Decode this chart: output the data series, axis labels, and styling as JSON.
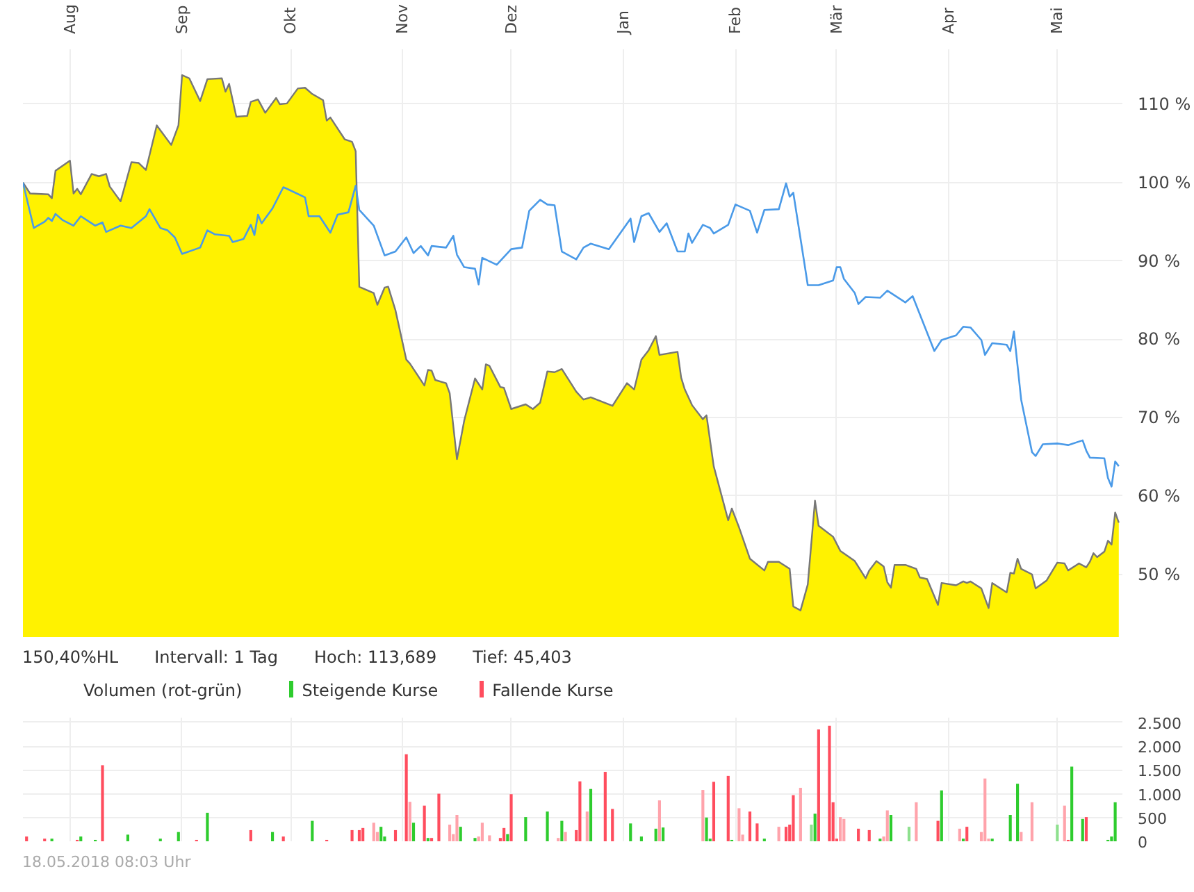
{
  "chart_data": [
    {
      "type": "area",
      "xlim": [
        "2017-07-19",
        "2018-05-19"
      ],
      "ylim": [
        42,
        117
      ],
      "xticks": [
        {
          "value": "2017-08-01",
          "label": "Aug"
        },
        {
          "value": "2017-09-01",
          "label": "Sep"
        },
        {
          "value": "2017-10-01",
          "label": "Okt"
        },
        {
          "value": "2017-11-01",
          "label": "Nov"
        },
        {
          "value": "2017-12-01",
          "label": "Dez"
        },
        {
          "value": "2018-01-01",
          "label": "Jan"
        },
        {
          "value": "2018-02-01",
          "label": "Feb"
        },
        {
          "value": "2018-03-01",
          "label": "Mär"
        },
        {
          "value": "2018-04-01",
          "label": "Apr"
        },
        {
          "value": "2018-05-01",
          "label": "Mai"
        }
      ],
      "yticks": [
        {
          "value": 50,
          "label": "50 %"
        },
        {
          "value": 60,
          "label": "60 %"
        },
        {
          "value": 70,
          "label": "70 %"
        },
        {
          "value": 80,
          "label": "80 %"
        },
        {
          "value": 90,
          "label": "90 %"
        },
        {
          "value": 100,
          "label": "100 %"
        },
        {
          "value": 110,
          "label": "110 %"
        }
      ],
      "grid": true,
      "annotations": [
        "150,40%HL",
        "Intervall: 1 Tag",
        "Hoch: 113,689",
        "Tief: 45,403"
      ],
      "series": [
        {
          "type": "area",
          "color": "#fff200",
          "x": [
            "2017-07-19",
            "2017-07-21",
            "2017-07-26",
            "2017-07-27",
            "2017-07-28",
            "2017-08-01",
            "2017-08-02",
            "2017-08-03",
            "2017-08-04",
            "2017-08-07",
            "2017-08-09",
            "2017-08-11",
            "2017-08-12",
            "2017-08-15",
            "2017-08-18",
            "2017-08-20",
            "2017-08-22",
            "2017-08-25",
            "2017-08-29",
            "2017-08-31",
            "2017-09-01",
            "2017-09-03",
            "2017-09-06",
            "2017-09-08",
            "2017-09-12",
            "2017-09-13",
            "2017-09-14",
            "2017-09-16",
            "2017-09-19",
            "2017-09-20",
            "2017-09-22",
            "2017-09-24",
            "2017-09-27",
            "2017-09-28",
            "2017-09-30",
            "2017-10-03",
            "2017-10-05",
            "2017-10-07",
            "2017-10-10",
            "2017-10-11",
            "2017-10-12",
            "2017-10-16",
            "2017-10-18",
            "2017-10-19",
            "2017-10-20",
            "2017-10-24",
            "2017-10-25",
            "2017-10-27",
            "2017-10-28",
            "2017-10-30",
            "2017-11-02",
            "2017-11-03",
            "2017-11-07",
            "2017-11-08",
            "2017-11-09",
            "2017-11-10",
            "2017-11-13",
            "2017-11-14",
            "2017-11-16",
            "2017-11-18",
            "2017-11-21",
            "2017-11-23",
            "2017-11-24",
            "2017-11-25",
            "2017-11-28",
            "2017-11-29",
            "2017-12-01",
            "2017-12-05",
            "2017-12-07",
            "2017-12-09",
            "2017-12-11",
            "2017-12-13",
            "2017-12-15",
            "2017-12-19",
            "2017-12-21",
            "2017-12-23",
            "2017-12-29",
            "2018-01-02",
            "2018-01-04",
            "2018-01-06",
            "2018-01-08",
            "2018-01-10",
            "2018-01-11",
            "2018-01-16",
            "2018-01-17",
            "2018-01-18",
            "2018-01-20",
            "2018-01-23",
            "2018-01-24",
            "2018-01-26",
            "2018-01-30",
            "2018-01-31",
            "2018-02-02",
            "2018-02-05",
            "2018-02-09",
            "2018-02-10",
            "2018-02-13",
            "2018-02-16",
            "2018-02-17",
            "2018-02-19",
            "2018-02-21",
            "2018-02-23",
            "2018-02-24",
            "2018-02-28",
            "2018-03-02",
            "2018-03-06",
            "2018-03-09",
            "2018-03-10",
            "2018-03-12",
            "2018-03-14",
            "2018-03-15",
            "2018-03-16",
            "2018-03-17",
            "2018-03-20",
            "2018-03-23",
            "2018-03-24",
            "2018-03-26",
            "2018-03-29",
            "2018-03-30",
            "2018-04-03",
            "2018-04-05",
            "2018-04-06",
            "2018-04-07",
            "2018-04-10",
            "2018-04-12",
            "2018-04-13",
            "2018-04-17",
            "2018-04-18",
            "2018-04-19",
            "2018-04-20",
            "2018-04-21",
            "2018-04-24",
            "2018-04-25",
            "2018-04-28",
            "2018-05-01",
            "2018-05-03",
            "2018-05-04",
            "2018-05-07",
            "2018-05-09",
            "2018-05-10",
            "2018-05-11",
            "2018-05-12",
            "2018-05-14",
            "2018-05-15",
            "2018-05-16",
            "2018-05-17",
            "2018-05-18"
          ],
          "values": [
            100.0,
            98.6,
            98.5,
            98.0,
            101.5,
            102.8,
            98.6,
            99.2,
            98.5,
            101.1,
            100.8,
            101.1,
            99.5,
            97.6,
            102.6,
            102.5,
            101.6,
            107.3,
            104.8,
            107.3,
            113.7,
            113.3,
            110.4,
            113.2,
            113.3,
            111.6,
            112.6,
            108.4,
            108.5,
            110.3,
            110.6,
            108.9,
            110.8,
            110.0,
            110.1,
            112.0,
            112.1,
            111.3,
            110.5,
            107.9,
            108.3,
            105.5,
            105.2,
            104.0,
            86.7,
            85.9,
            84.4,
            86.6,
            86.7,
            83.7,
            77.4,
            76.9,
            74.1,
            76.1,
            76.0,
            74.8,
            74.4,
            73.1,
            64.7,
            69.6,
            75.0,
            73.6,
            76.8,
            76.6,
            73.9,
            73.8,
            71.1,
            71.7,
            71.1,
            71.9,
            75.9,
            75.8,
            76.2,
            73.3,
            72.3,
            72.6,
            71.5,
            74.4,
            73.6,
            77.4,
            78.6,
            80.4,
            78.0,
            78.4,
            75.1,
            73.6,
            71.6,
            69.8,
            70.3,
            63.8,
            56.9,
            58.4,
            56.0,
            52.0,
            50.5,
            51.6,
            51.6,
            50.7,
            45.9,
            45.4,
            48.7,
            59.4,
            56.2,
            54.8,
            53.0,
            51.7,
            49.5,
            50.5,
            51.7,
            51.0,
            49.0,
            48.3,
            51.2,
            51.2,
            50.7,
            49.6,
            49.4,
            46.1,
            48.9,
            48.6,
            49.1,
            48.9,
            49.1,
            48.2,
            45.7,
            48.9,
            47.7,
            50.2,
            50.1,
            52.0,
            50.7,
            50.0,
            48.2,
            49.2,
            51.5,
            51.4,
            50.5,
            51.4,
            50.9,
            51.6,
            52.7,
            52.2,
            52.9,
            54.3,
            53.8,
            57.9,
            56.6
          ]
        },
        {
          "type": "line",
          "color": "#4a9ae8",
          "x": [
            "2017-07-19",
            "2017-07-22",
            "2017-07-25",
            "2017-07-26",
            "2017-07-27",
            "2017-07-28",
            "2017-07-30",
            "2017-08-02",
            "2017-08-04",
            "2017-08-08",
            "2017-08-10",
            "2017-08-11",
            "2017-08-15",
            "2017-08-18",
            "2017-08-22",
            "2017-08-23",
            "2017-08-26",
            "2017-08-28",
            "2017-08-30",
            "2017-09-01",
            "2017-09-06",
            "2017-09-08",
            "2017-09-10",
            "2017-09-14",
            "2017-09-15",
            "2017-09-18",
            "2017-09-20",
            "2017-09-21",
            "2017-09-22",
            "2017-09-23",
            "2017-09-26",
            "2017-09-29",
            "2017-09-30",
            "2017-10-05",
            "2017-10-06",
            "2017-10-09",
            "2017-10-12",
            "2017-10-14",
            "2017-10-17",
            "2017-10-19",
            "2017-10-20",
            "2017-10-24",
            "2017-10-27",
            "2017-10-30",
            "2017-11-02",
            "2017-11-04",
            "2017-11-06",
            "2017-11-08",
            "2017-11-09",
            "2017-11-13",
            "2017-11-15",
            "2017-11-16",
            "2017-11-18",
            "2017-11-21",
            "2017-11-22",
            "2017-11-23",
            "2017-11-27",
            "2017-12-01",
            "2017-12-04",
            "2017-12-06",
            "2017-12-09",
            "2017-12-11",
            "2017-12-13",
            "2017-12-15",
            "2017-12-19",
            "2017-12-21",
            "2017-12-23",
            "2017-12-28",
            "2018-01-03",
            "2018-01-04",
            "2018-01-06",
            "2018-01-08",
            "2018-01-11",
            "2018-01-13",
            "2018-01-16",
            "2018-01-18",
            "2018-01-19",
            "2018-01-20",
            "2018-01-23",
            "2018-01-25",
            "2018-01-26",
            "2018-01-30",
            "2018-02-01",
            "2018-02-05",
            "2018-02-07",
            "2018-02-09",
            "2018-02-13",
            "2018-02-15",
            "2018-02-16",
            "2018-02-17",
            "2018-02-20",
            "2018-02-21",
            "2018-02-24",
            "2018-02-28",
            "2018-03-01",
            "2018-03-02",
            "2018-03-03",
            "2018-03-06",
            "2018-03-07",
            "2018-03-09",
            "2018-03-13",
            "2018-03-15",
            "2018-03-20",
            "2018-03-22",
            "2018-03-28",
            "2018-03-30",
            "2018-04-03",
            "2018-04-05",
            "2018-04-07",
            "2018-04-10",
            "2018-04-11",
            "2018-04-13",
            "2018-04-17",
            "2018-04-18",
            "2018-04-19",
            "2018-04-21",
            "2018-04-24",
            "2018-04-25",
            "2018-04-27",
            "2018-05-01",
            "2018-05-04",
            "2018-05-08",
            "2018-05-09",
            "2018-05-10",
            "2018-05-14",
            "2018-05-15",
            "2018-05-16",
            "2018-05-17",
            "2018-05-18"
          ],
          "values": [
            100.0,
            94.2,
            95.0,
            95.5,
            95.1,
            96.0,
            95.2,
            94.5,
            95.7,
            94.5,
            94.9,
            93.7,
            94.5,
            94.2,
            95.7,
            96.6,
            94.2,
            93.9,
            93.0,
            90.9,
            91.7,
            93.9,
            93.4,
            93.2,
            92.4,
            92.8,
            94.6,
            93.3,
            95.9,
            94.8,
            96.7,
            99.4,
            99.2,
            98.1,
            95.7,
            95.7,
            93.6,
            95.9,
            96.2,
            99.6,
            96.5,
            94.5,
            90.7,
            91.2,
            93.0,
            91.0,
            91.9,
            90.7,
            91.9,
            91.7,
            93.2,
            90.8,
            89.2,
            89.0,
            87.0,
            90.4,
            89.5,
            91.5,
            91.7,
            96.4,
            97.8,
            97.2,
            97.1,
            91.2,
            90.2,
            91.7,
            92.2,
            91.5,
            95.4,
            92.4,
            95.7,
            96.1,
            93.7,
            94.8,
            91.2,
            91.2,
            93.5,
            92.3,
            94.6,
            94.2,
            93.5,
            94.6,
            97.2,
            96.4,
            93.6,
            96.5,
            96.6,
            99.9,
            98.2,
            98.7,
            89.9,
            86.9,
            86.9,
            87.5,
            89.2,
            89.2,
            87.7,
            85.9,
            84.5,
            85.4,
            85.3,
            86.2,
            84.7,
            85.5,
            78.5,
            79.9,
            80.5,
            81.6,
            81.5,
            79.9,
            78.0,
            79.5,
            79.3,
            78.5,
            81.0,
            72.3,
            65.6,
            65.1,
            66.6,
            66.7,
            66.5,
            67.1,
            65.8,
            64.9,
            64.8,
            62.3,
            61.2,
            64.4,
            63.8
          ]
        }
      ]
    },
    {
      "type": "bar",
      "title": "Volumen (rot-grün)",
      "xlim": [
        "2017-07-19",
        "2018-05-19"
      ],
      "xticks": [
        {
          "value": "2017-08-01",
          "label": null
        },
        {
          "value": "2017-09-01",
          "label": null
        },
        {
          "value": "2017-10-01",
          "label": null
        },
        {
          "value": "2017-11-01",
          "label": null
        },
        {
          "value": "2017-12-01",
          "label": null
        },
        {
          "value": "2018-01-01",
          "label": null
        },
        {
          "value": "2018-02-01",
          "label": null
        },
        {
          "value": "2018-03-01",
          "label": null
        },
        {
          "value": "2018-04-01",
          "label": null
        },
        {
          "value": "2018-05-01",
          "label": null
        }
      ],
      "ylim": [
        0,
        2600
      ],
      "yticks": [
        0,
        500,
        {
          "value": 1000,
          "label": "1.000"
        },
        {
          "value": 1500,
          "label": "1.500"
        },
        {
          "value": 2000,
          "label": "2.000"
        },
        {
          "value": 2500,
          "label": "2.500"
        }
      ],
      "tick_labels": "y",
      "grid": true,
      "legend": "top left",
      "annotations": [
        "18.05.2018 08:03 Uhr"
      ],
      "series": [
        {
          "name": "Steigende Kurse",
          "x": [
            "2017-07-27",
            "2017-08-04",
            "2017-08-08",
            "2017-08-17",
            "2017-08-26",
            "2017-08-31",
            "2017-09-08",
            "2017-09-26",
            "2017-10-07",
            "2017-10-26",
            "2017-10-27",
            "2017-11-04",
            "2017-11-08",
            "2017-11-17",
            "2017-11-21",
            "2017-11-24",
            "2017-11-30",
            "2017-12-02",
            "2017-12-05",
            "2017-12-11",
            "2017-12-15",
            "2017-12-23",
            "2018-01-03",
            "2018-01-06",
            "2018-01-10",
            "2018-01-12",
            "2018-01-24",
            "2018-01-25",
            "2018-01-31",
            "2018-02-09",
            "2018-02-21",
            "2018-02-22",
            "2018-02-23",
            "2018-03-13",
            "2018-03-16",
            "2018-03-21",
            "2018-03-30",
            "2018-04-05",
            "2018-04-13",
            "2018-04-18",
            "2018-04-20",
            "2018-05-01",
            "2018-05-05",
            "2018-05-08",
            "2018-05-15",
            "2018-05-16",
            "2018-05-17"
          ],
          "values": [
            55,
            100,
            30,
            140,
            55,
            195,
            600,
            195,
            430,
            305,
            100,
            390,
            70,
            305,
            70,
            null,
            150,
            null,
            510,
            625,
            430,
            1100,
            375,
            100,
            265,
            290,
            500,
            55,
            30,
            55,
            null,
            350,
            580,
            55,
            555,
            305,
            1070,
            55,
            55,
            555,
            1210,
            350,
            1570,
            470,
            30,
            100,
            820
          ],
          "colors": [
            "#2ecc2e",
            "#2ecc2e",
            "#2ecc2e",
            "#2ecc2e",
            "#2ecc2e",
            "#2ecc2e",
            "#2ecc2e",
            "#2ecc2e",
            "#2ecc2e",
            "#2ecc2e",
            "#2ecc2e",
            "#2ecc2e",
            "#2ecc2e",
            "#2ecc2e",
            "#2ecc2e",
            "#2ecc2e",
            "#2ecc2e",
            "#2ecc2e",
            "#2ecc2e",
            "#2ecc2e",
            "#2ecc2e",
            "#2ecc2e",
            "#2ecc2e",
            "#2ecc2e",
            "#2ecc2e",
            "#2ecc2e",
            "#2ecc2e",
            "#2ecc2e",
            "#2ecc2e",
            "#2ecc2e",
            "#8ee08e",
            "#8ee08e",
            "#2ecc2e",
            "#2ecc2e",
            "#2ecc2e",
            "#8ee08e",
            "#2ecc2e",
            "#2ecc2e",
            "#2ecc2e",
            "#2ecc2e",
            "#2ecc2e",
            "#8ee08e",
            "#2ecc2e",
            "#2ecc2e",
            "#2ecc2e",
            "#2ecc2e",
            "#2ecc2e"
          ]
        },
        {
          "name": "Fallende Kurse",
          "x": [
            "2017-07-20",
            "2017-07-25",
            "2017-08-03",
            "2017-08-10",
            "2017-09-05",
            "2017-09-20",
            "2017-09-29",
            "2017-10-11",
            "2017-10-18",
            "2017-10-20",
            "2017-10-21",
            "2017-10-24",
            "2017-10-25",
            "2017-10-30",
            "2017-11-02",
            "2017-11-03",
            "2017-11-07",
            "2017-11-09",
            "2017-11-11",
            "2017-11-14",
            "2017-11-15",
            "2017-11-16",
            "2017-11-22",
            "2017-11-23",
            "2017-11-25",
            "2017-11-28",
            "2017-11-29",
            "2017-12-01",
            "2017-12-07",
            "2017-12-14",
            "2017-12-16",
            "2017-12-19",
            "2017-12-20",
            "2017-12-22",
            "2017-12-27",
            "2017-12-29",
            "2018-01-11",
            "2018-01-23",
            "2018-01-26",
            "2018-01-30",
            "2018-02-02",
            "2018-02-03",
            "2018-02-05",
            "2018-02-07",
            "2018-02-13",
            "2018-02-15",
            "2018-02-16",
            "2018-02-17",
            "2018-02-19",
            "2018-02-24",
            "2018-02-27",
            "2018-02-28",
            "2018-03-01",
            "2018-03-02",
            "2018-03-03",
            "2018-03-07",
            "2018-03-10",
            "2018-03-14",
            "2018-03-15",
            "2018-03-23",
            "2018-03-29",
            "2018-04-04",
            "2018-04-06",
            "2018-04-10",
            "2018-04-11",
            "2018-04-12",
            "2018-04-21",
            "2018-04-24",
            "2018-04-25",
            "2018-05-03",
            "2018-05-04",
            "2018-05-09"
          ],
          "values": [
            100,
            55,
            30,
            1600,
            30,
            235,
            100,
            30,
            235,
            235,
            280,
            390,
            195,
            235,
            1830,
            830,
            750,
            70,
            1000,
            350,
            150,
            555,
            100,
            390,
            125,
            70,
            280,
            990,
            null,
            70,
            195,
            235,
            1260,
            625,
            1460,
            680,
            860,
            1080,
            1250,
            1375,
            695,
            140,
            625,
            375,
            305,
            305,
            350,
            970,
            1125,
            2350,
            2430,
            820,
            55,
            510,
            470,
            265,
            235,
            100,
            650,
            820,
            430,
            265,
            305,
            195,
            1320,
            55,
            195,
            820,
            null,
            750,
            30,
            510
          ],
          "colors": [
            "#ff4d5e",
            "#ff4d5e",
            "#ff4d5e",
            "#ff4d5e",
            "#ff4d5e",
            "#ff4d5e",
            "#ff4d5e",
            "#ff4d5e",
            "#ff4d5e",
            "#ff4d5e",
            "#ff4d5e",
            "#ffa3ab",
            "#ffa3ab",
            "#ff4d5e",
            "#ff4d5e",
            "#ffa3ab",
            "#ff4d5e",
            "#ff4d5e",
            "#ff4d5e",
            "#ffa3ab",
            "#ffa3ab",
            "#ffa3ab",
            "#ffa3ab",
            "#ffa3ab",
            "#ffa3ab",
            "#ff4d5e",
            "#ff4d5e",
            "#ff4d5e",
            "#ff4d5e",
            "#ffa3ab",
            "#ffa3ab",
            "#ff4d5e",
            "#ff4d5e",
            "#ffa3ab",
            "#ff4d5e",
            "#ff4d5e",
            "#ffa3ab",
            "#ffa3ab",
            "#ff4d5e",
            "#ff4d5e",
            "#ffa3ab",
            "#ffa3ab",
            "#ff4d5e",
            "#ff4d5e",
            "#ffa3ab",
            "#ff4d5e",
            "#ff4d5e",
            "#ff4d5e",
            "#ffa3ab",
            "#ff4d5e",
            "#ff4d5e",
            "#ff4d5e",
            "#ff4d5e",
            "#ffa3ab",
            "#ffa3ab",
            "#ff4d5e",
            "#ff4d5e",
            "#ffa3ab",
            "#ffa3ab",
            "#ffa3ab",
            "#ff4d5e",
            "#ffa3ab",
            "#ff4d5e",
            "#ffa3ab",
            "#ffa3ab",
            "#ffa3ab",
            "#ffa3ab",
            "#ffa3ab",
            "#ff4d5e",
            "#ffa3ab",
            "#ff4d5e",
            "#ff4d5e"
          ]
        }
      ]
    }
  ]
}
